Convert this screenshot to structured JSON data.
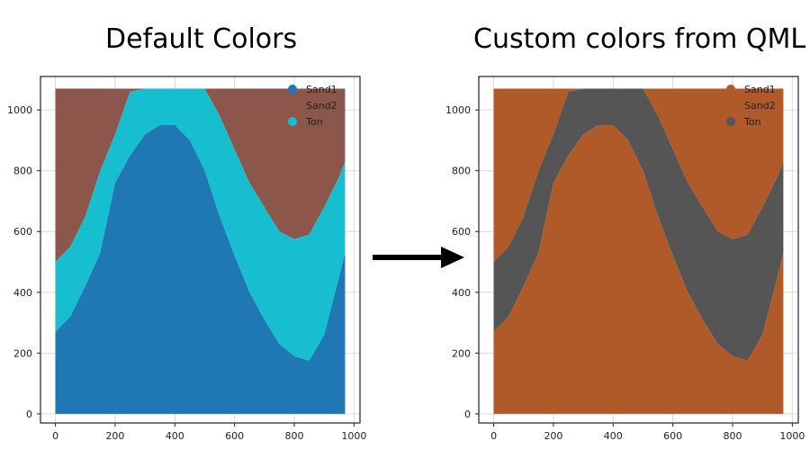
{
  "panels": [
    {
      "title": "Default Colors"
    },
    {
      "title": "Custom colors from QML"
    }
  ],
  "chart_data": [
    {
      "type": "area",
      "title": "Default Colors",
      "xlabel": "",
      "ylabel": "",
      "xlim": [
        -50,
        1020
      ],
      "ylim": [
        -30,
        1110
      ],
      "xticks": [
        0,
        200,
        400,
        600,
        800,
        1000
      ],
      "yticks": [
        0,
        200,
        400,
        600,
        800,
        1000
      ],
      "grid": true,
      "legend_position": "top-right",
      "x": [
        0,
        50,
        100,
        150,
        200,
        250,
        300,
        350,
        400,
        450,
        500,
        550,
        600,
        650,
        700,
        750,
        800,
        850,
        900,
        950,
        970
      ],
      "lower_boundary": [
        270,
        320,
        420,
        530,
        760,
        850,
        920,
        950,
        950,
        900,
        800,
        650,
        520,
        400,
        310,
        230,
        190,
        175,
        260,
        450,
        530
      ],
      "upper_boundary": [
        500,
        550,
        650,
        800,
        920,
        1060,
        1070,
        1070,
        1070,
        1070,
        1070,
        980,
        870,
        760,
        680,
        600,
        575,
        590,
        680,
        780,
        830
      ],
      "top": 1070,
      "series": [
        {
          "name": "Sand1",
          "color": "#1f77b4"
        },
        {
          "name": "Sand2",
          "color": "#8c564b"
        },
        {
          "name": "Ton",
          "color": "#17becf"
        }
      ]
    },
    {
      "type": "area",
      "title": "Custom colors from QML",
      "xlabel": "",
      "ylabel": "",
      "xlim": [
        -50,
        1020
      ],
      "ylim": [
        -30,
        1110
      ],
      "xticks": [
        0,
        200,
        400,
        600,
        800,
        1000
      ],
      "yticks": [
        0,
        200,
        400,
        600,
        800,
        1000
      ],
      "grid": true,
      "legend_position": "top-right",
      "x": [
        0,
        50,
        100,
        150,
        200,
        250,
        300,
        350,
        400,
        450,
        500,
        550,
        600,
        650,
        700,
        750,
        800,
        850,
        900,
        950,
        970
      ],
      "lower_boundary": [
        270,
        320,
        420,
        530,
        760,
        850,
        920,
        950,
        950,
        900,
        800,
        650,
        520,
        400,
        310,
        230,
        190,
        175,
        260,
        450,
        530
      ],
      "upper_boundary": [
        500,
        550,
        650,
        800,
        920,
        1060,
        1070,
        1070,
        1070,
        1070,
        1070,
        980,
        870,
        760,
        680,
        600,
        575,
        590,
        680,
        780,
        830
      ],
      "top": 1070,
      "series": [
        {
          "name": "Sand1",
          "color": "#b05a2a"
        },
        {
          "name": "Sand2",
          "color": "#b05a2a"
        },
        {
          "name": "Ton",
          "color": "#555555"
        }
      ]
    }
  ],
  "arrow_icon": "right-arrow-icon"
}
